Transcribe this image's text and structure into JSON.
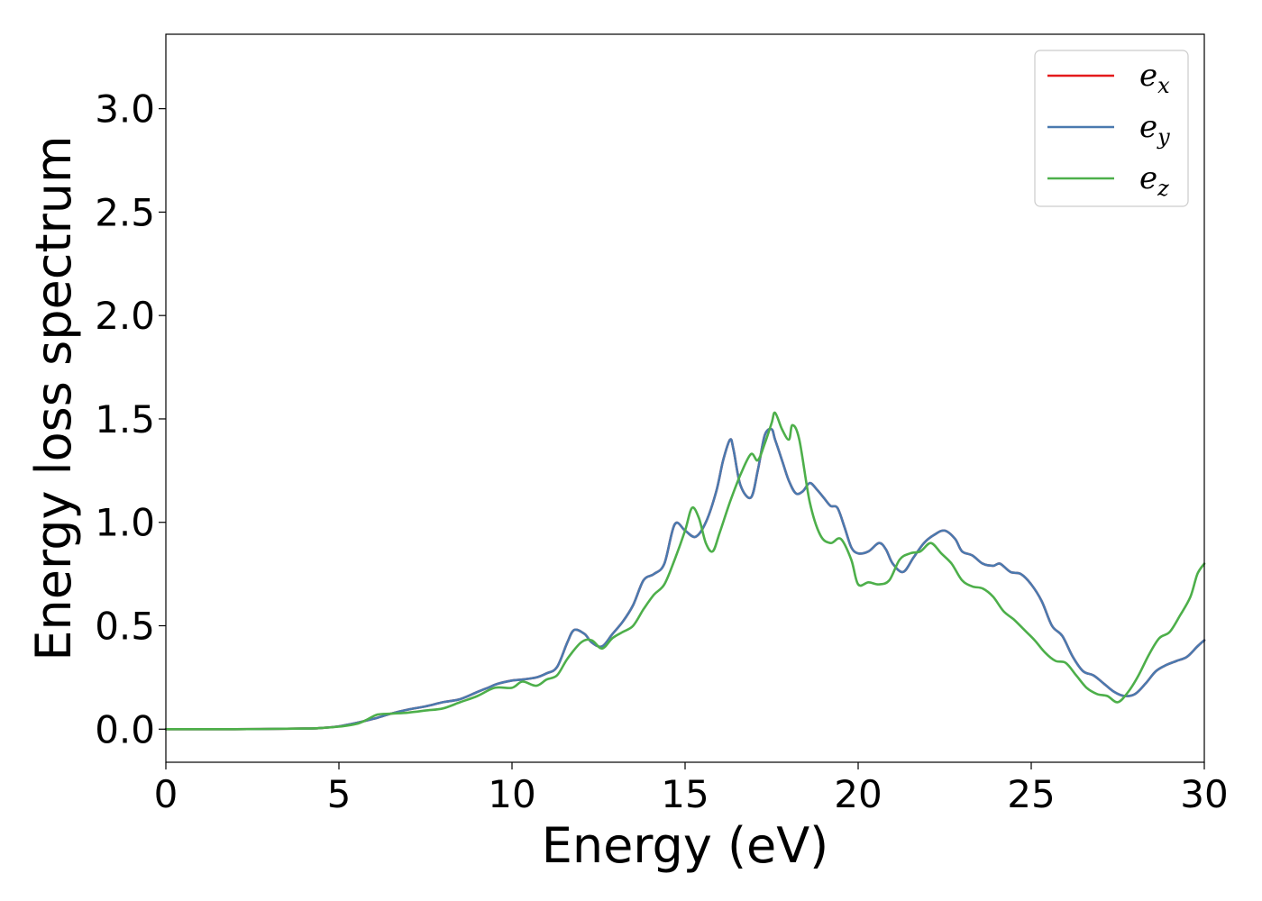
{
  "chart_data": {
    "type": "line",
    "title": "",
    "xlabel": "Energy (eV)",
    "ylabel": "Energy loss spectrum",
    "xlim": [
      0,
      30
    ],
    "ylim": [
      -0.16,
      3.36
    ],
    "xticks": [
      0,
      5,
      10,
      15,
      20,
      25,
      30
    ],
    "xtick_labels": [
      "0",
      "5",
      "10",
      "15",
      "20",
      "25",
      "30"
    ],
    "yticks": [
      0.0,
      0.5,
      1.0,
      1.5,
      2.0,
      2.5,
      3.0
    ],
    "ytick_labels": [
      "0.0",
      "0.5",
      "1.0",
      "1.5",
      "2.0",
      "2.5",
      "3.0"
    ],
    "grid": false,
    "legend_position": "top-right",
    "series": [
      {
        "name": "e",
        "subscript": "x",
        "color": "#e41a1c",
        "x": [
          0,
          2,
          4,
          4.5,
          5,
          5.5,
          6,
          6.5,
          7,
          7.5,
          8,
          8.5,
          9,
          9.3,
          9.6,
          10,
          10.3,
          10.7,
          11,
          11.3,
          11.6,
          11.8,
          12.1,
          12.3,
          12.6,
          12.9,
          13.2,
          13.5,
          13.8,
          14.1,
          14.4,
          14.7,
          15.0,
          15.3,
          15.6,
          15.9,
          16.1,
          16.3,
          16.4,
          16.6,
          16.9,
          17.1,
          17.3,
          17.5,
          17.6,
          17.8,
          18.0,
          18.2,
          18.4,
          18.6,
          18.8,
          19.0,
          19.2,
          19.4,
          19.6,
          19.8,
          20.0,
          20.3,
          20.6,
          20.8,
          21.0,
          21.3,
          21.6,
          21.9,
          22.2,
          22.5,
          22.8,
          23.0,
          23.3,
          23.6,
          23.9,
          24.1,
          24.4,
          24.7,
          25.0,
          25.3,
          25.6,
          25.9,
          26.2,
          26.5,
          26.8,
          27.1,
          27.4,
          27.7,
          28.0,
          28.3,
          28.6,
          28.9,
          29.2,
          29.5,
          29.8,
          30.0
        ],
        "values": [
          0.0,
          0.0,
          0.003,
          0.006,
          0.014,
          0.03,
          0.05,
          0.075,
          0.095,
          0.11,
          0.13,
          0.145,
          0.18,
          0.2,
          0.22,
          0.235,
          0.24,
          0.25,
          0.27,
          0.3,
          0.42,
          0.48,
          0.46,
          0.42,
          0.4,
          0.46,
          0.52,
          0.6,
          0.72,
          0.75,
          0.8,
          0.99,
          0.96,
          0.93,
          1.0,
          1.15,
          1.3,
          1.4,
          1.35,
          1.18,
          1.12,
          1.25,
          1.42,
          1.45,
          1.4,
          1.3,
          1.2,
          1.14,
          1.15,
          1.19,
          1.16,
          1.12,
          1.08,
          1.07,
          0.98,
          0.88,
          0.85,
          0.86,
          0.9,
          0.87,
          0.8,
          0.76,
          0.83,
          0.9,
          0.94,
          0.96,
          0.92,
          0.86,
          0.84,
          0.8,
          0.79,
          0.8,
          0.76,
          0.75,
          0.7,
          0.62,
          0.5,
          0.45,
          0.35,
          0.28,
          0.26,
          0.22,
          0.18,
          0.16,
          0.17,
          0.22,
          0.28,
          0.31,
          0.33,
          0.35,
          0.4,
          0.43
        ]
      },
      {
        "name": "e",
        "subscript": "y",
        "color": "#4a7aaf",
        "x": [
          0,
          2,
          4,
          4.5,
          5,
          5.5,
          6,
          6.5,
          7,
          7.5,
          8,
          8.5,
          9,
          9.3,
          9.6,
          10,
          10.3,
          10.7,
          11,
          11.3,
          11.6,
          11.8,
          12.1,
          12.3,
          12.6,
          12.9,
          13.2,
          13.5,
          13.8,
          14.1,
          14.4,
          14.7,
          15.0,
          15.3,
          15.6,
          15.9,
          16.1,
          16.3,
          16.4,
          16.6,
          16.9,
          17.1,
          17.3,
          17.5,
          17.6,
          17.8,
          18.0,
          18.2,
          18.4,
          18.6,
          18.8,
          19.0,
          19.2,
          19.4,
          19.6,
          19.8,
          20.0,
          20.3,
          20.6,
          20.8,
          21.0,
          21.3,
          21.6,
          21.9,
          22.2,
          22.5,
          22.8,
          23.0,
          23.3,
          23.6,
          23.9,
          24.1,
          24.4,
          24.7,
          25.0,
          25.3,
          25.6,
          25.9,
          26.2,
          26.5,
          26.8,
          27.1,
          27.4,
          27.7,
          28.0,
          28.3,
          28.6,
          28.9,
          29.2,
          29.5,
          29.8,
          30.0
        ],
        "values": [
          0.0,
          0.0,
          0.003,
          0.006,
          0.014,
          0.03,
          0.05,
          0.075,
          0.095,
          0.11,
          0.13,
          0.145,
          0.18,
          0.2,
          0.22,
          0.235,
          0.24,
          0.25,
          0.27,
          0.3,
          0.42,
          0.48,
          0.46,
          0.42,
          0.4,
          0.46,
          0.52,
          0.6,
          0.72,
          0.75,
          0.8,
          0.99,
          0.96,
          0.93,
          1.0,
          1.15,
          1.3,
          1.4,
          1.35,
          1.18,
          1.12,
          1.25,
          1.42,
          1.45,
          1.4,
          1.3,
          1.2,
          1.14,
          1.15,
          1.19,
          1.16,
          1.12,
          1.08,
          1.07,
          0.98,
          0.88,
          0.85,
          0.86,
          0.9,
          0.87,
          0.8,
          0.76,
          0.83,
          0.9,
          0.94,
          0.96,
          0.92,
          0.86,
          0.84,
          0.8,
          0.79,
          0.8,
          0.76,
          0.75,
          0.7,
          0.62,
          0.5,
          0.45,
          0.35,
          0.28,
          0.26,
          0.22,
          0.18,
          0.16,
          0.17,
          0.22,
          0.28,
          0.31,
          0.33,
          0.35,
          0.4,
          0.43
        ]
      },
      {
        "name": "e",
        "subscript": "z",
        "color": "#4daf4a",
        "x": [
          0,
          2,
          4,
          4.5,
          5,
          5.5,
          5.8,
          6.1,
          6.5,
          7,
          7.5,
          8,
          8.5,
          9,
          9.5,
          10,
          10.3,
          10.7,
          11,
          11.3,
          11.6,
          12.0,
          12.3,
          12.6,
          12.9,
          13.2,
          13.5,
          13.8,
          14.1,
          14.4,
          14.7,
          15.0,
          15.2,
          15.4,
          15.6,
          15.8,
          16.0,
          16.3,
          16.6,
          16.9,
          17.1,
          17.3,
          17.5,
          17.6,
          17.8,
          18.0,
          18.1,
          18.3,
          18.6,
          18.9,
          19.2,
          19.5,
          19.8,
          20.0,
          20.3,
          20.6,
          20.9,
          21.2,
          21.5,
          21.8,
          22.1,
          22.4,
          22.7,
          23.0,
          23.3,
          23.6,
          23.9,
          24.2,
          24.5,
          24.8,
          25.1,
          25.4,
          25.7,
          26.0,
          26.3,
          26.6,
          26.9,
          27.2,
          27.5,
          27.8,
          28.1,
          28.4,
          28.7,
          29.0,
          29.3,
          29.6,
          29.8,
          30.0
        ],
        "values": [
          0.0,
          0.0,
          0.003,
          0.006,
          0.012,
          0.025,
          0.045,
          0.07,
          0.075,
          0.08,
          0.09,
          0.1,
          0.13,
          0.16,
          0.2,
          0.2,
          0.23,
          0.21,
          0.24,
          0.26,
          0.34,
          0.42,
          0.43,
          0.39,
          0.44,
          0.47,
          0.5,
          0.58,
          0.65,
          0.7,
          0.82,
          0.96,
          1.07,
          1.02,
          0.9,
          0.86,
          0.95,
          1.1,
          1.23,
          1.33,
          1.3,
          1.38,
          1.48,
          1.53,
          1.45,
          1.4,
          1.47,
          1.4,
          1.1,
          0.94,
          0.9,
          0.92,
          0.82,
          0.7,
          0.71,
          0.7,
          0.72,
          0.82,
          0.85,
          0.86,
          0.9,
          0.85,
          0.8,
          0.72,
          0.69,
          0.68,
          0.64,
          0.57,
          0.53,
          0.48,
          0.43,
          0.37,
          0.33,
          0.32,
          0.26,
          0.2,
          0.17,
          0.16,
          0.13,
          0.18,
          0.26,
          0.36,
          0.44,
          0.47,
          0.55,
          0.64,
          0.75,
          0.8
        ]
      }
    ]
  }
}
